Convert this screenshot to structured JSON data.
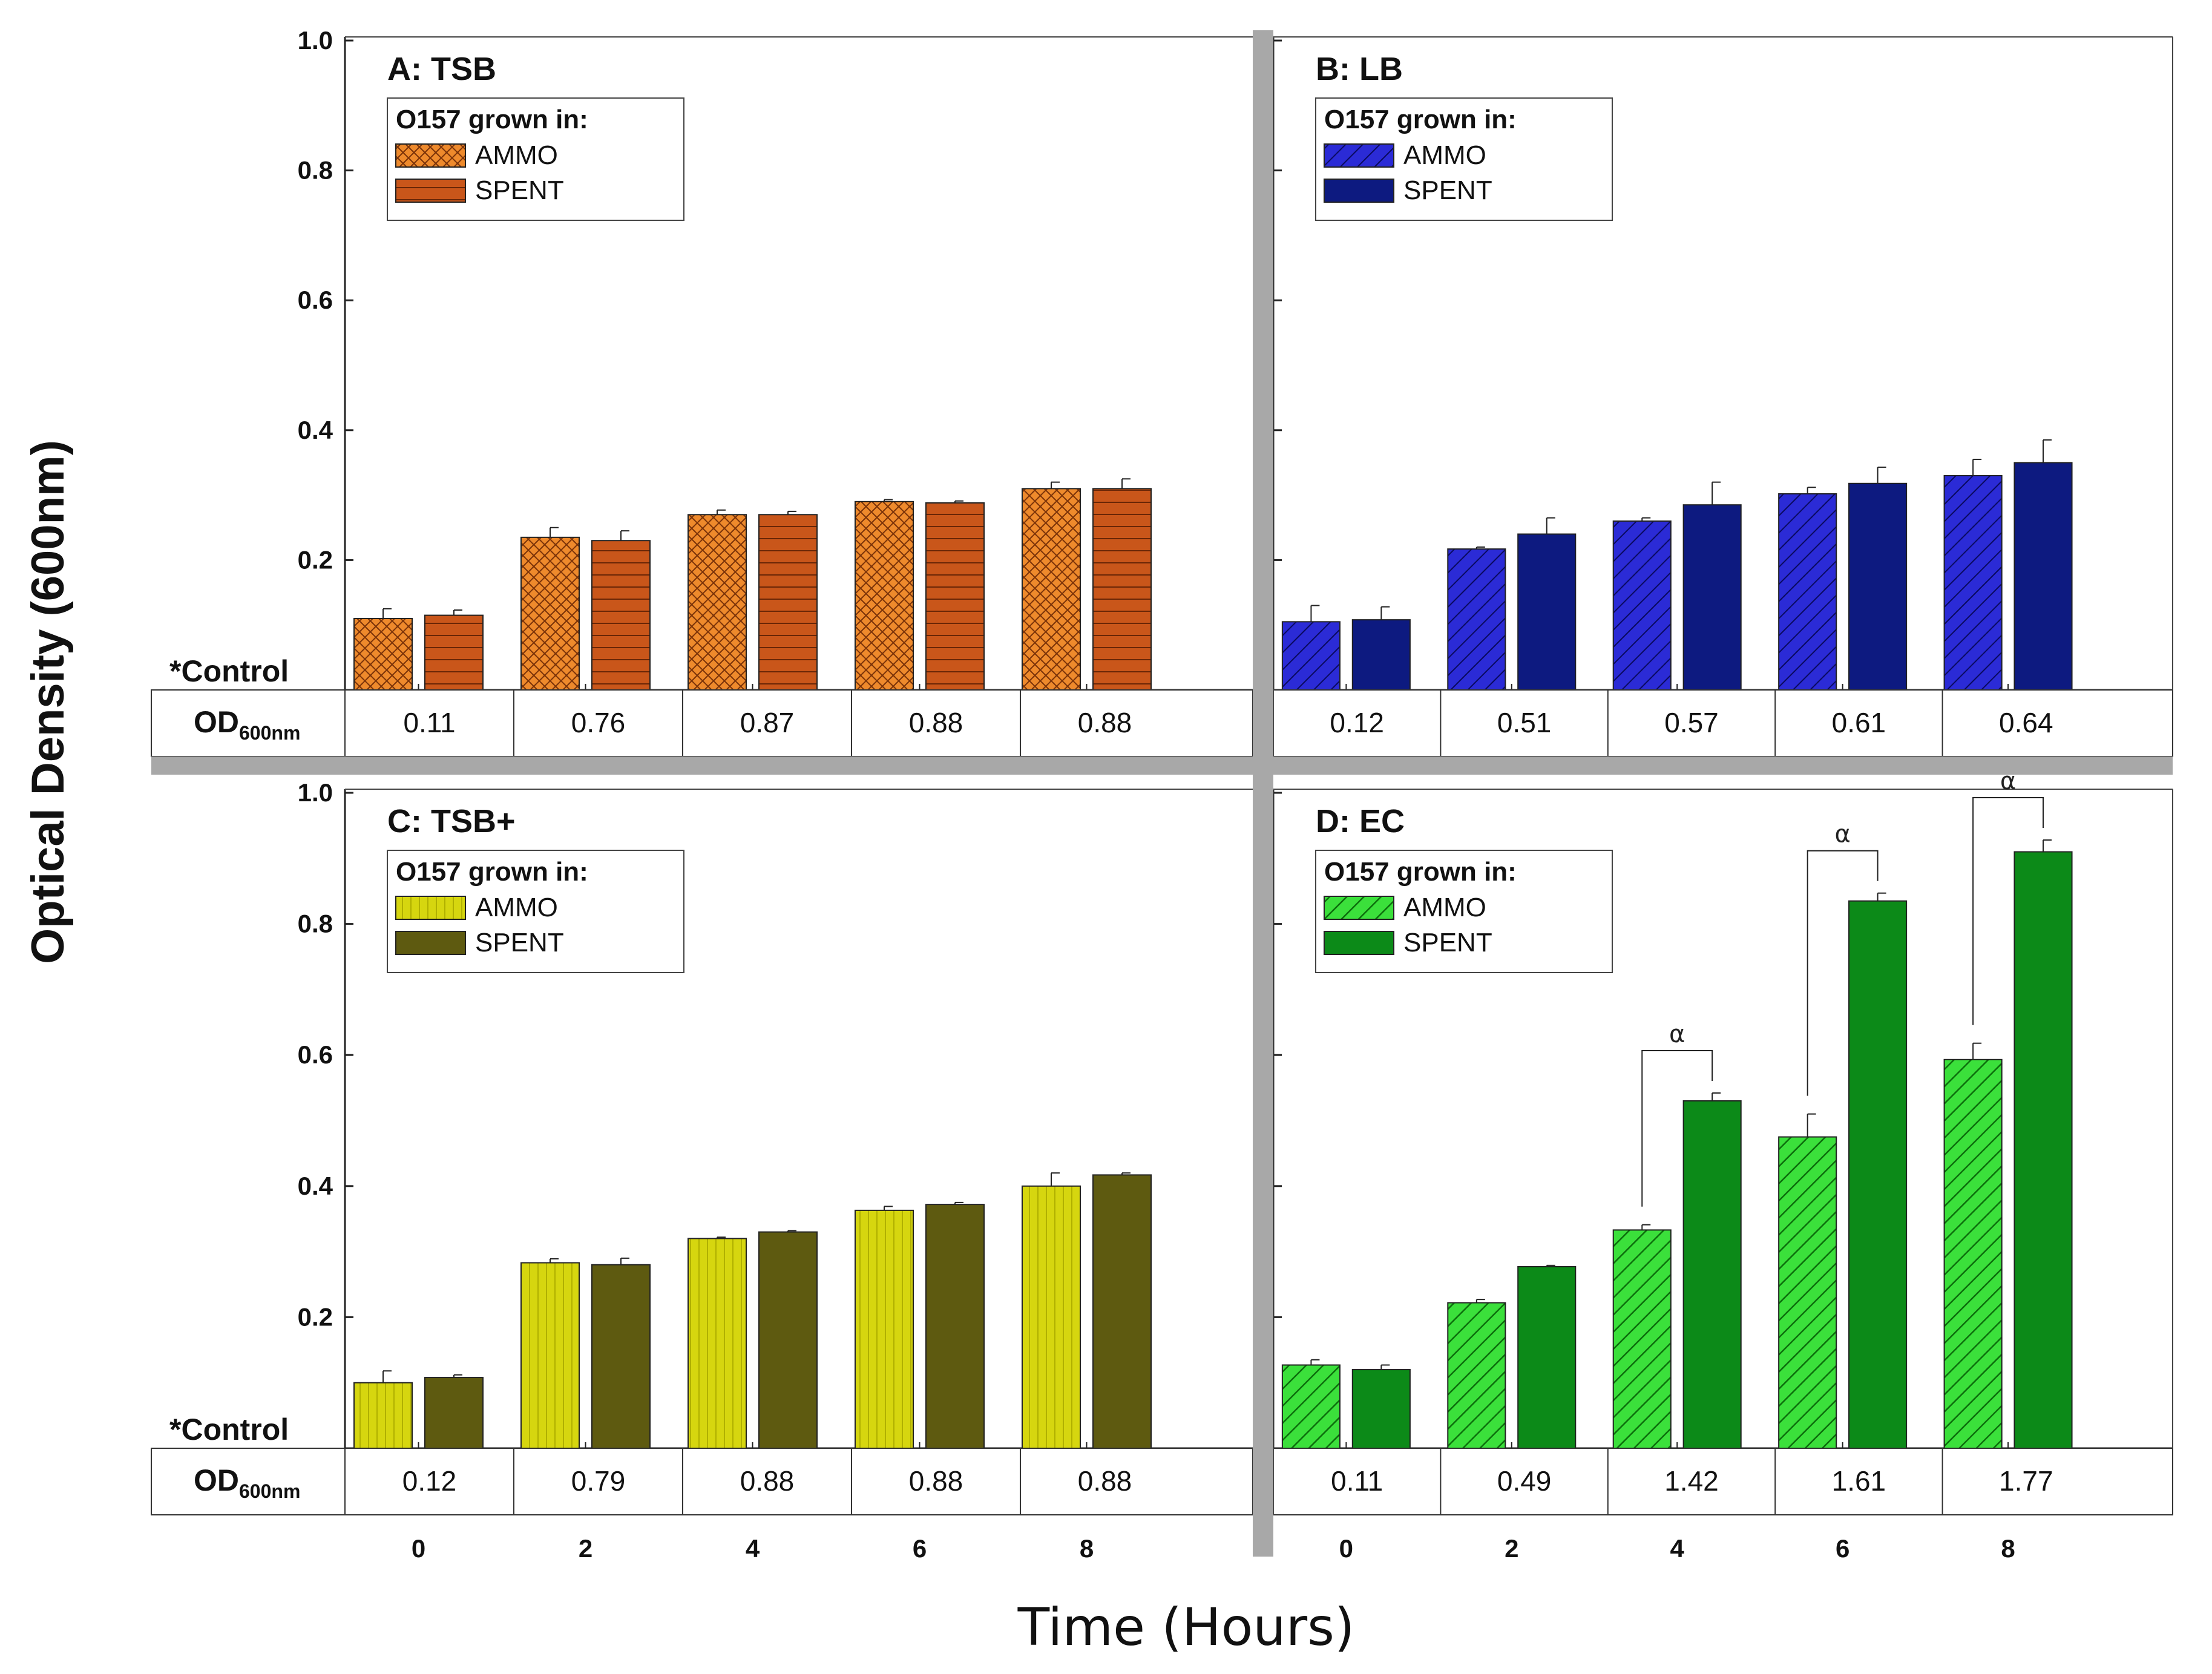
{
  "figure": {
    "ylabel": "Optical Density (600nm)",
    "xlabel": "Time (Hours)",
    "control_label": "*Control",
    "od_row_label": "OD",
    "od_row_sub": "600nm",
    "legend_title": "O157 grown in:",
    "significance_symbol": "α"
  },
  "colors": {
    "tsb_ammo": "#ee8a2c",
    "tsb_spent": "#c9561a",
    "lb_ammo": "#2b2bd6",
    "lb_spent": "#0d1a80",
    "tsbplus_ammo": "#d6d60f",
    "tsbplus_spent": "#5e5a10",
    "ec_ammo": "#3be03b",
    "ec_spent": "#0c8a18"
  },
  "chart_data": [
    {
      "type": "bar",
      "panel": "A",
      "title": "A:  TSB",
      "categories": [
        "0",
        "2",
        "4",
        "6",
        "8"
      ],
      "ylim": [
        0,
        1.0
      ],
      "yticks": [
        "0.2",
        "0.4",
        "0.6",
        "0.8",
        "1.0"
      ],
      "series": [
        {
          "name": "AMMO",
          "values": [
            0.11,
            0.235,
            0.27,
            0.29,
            0.31
          ],
          "errors": [
            0.015,
            0.015,
            0.007,
            0.003,
            0.01
          ]
        },
        {
          "name": "SPENT",
          "values": [
            0.115,
            0.23,
            0.27,
            0.288,
            0.31
          ],
          "errors": [
            0.008,
            0.015,
            0.005,
            0.003,
            0.015
          ]
        }
      ],
      "control_od": [
        "0.11",
        "0.76",
        "0.87",
        "0.88",
        "0.88"
      ]
    },
    {
      "type": "bar",
      "panel": "B",
      "title": "B:  LB",
      "categories": [
        "0",
        "2",
        "4",
        "6",
        "8"
      ],
      "ylim": [
        0,
        1.0
      ],
      "series": [
        {
          "name": "AMMO",
          "values": [
            0.105,
            0.217,
            0.26,
            0.302,
            0.33
          ],
          "errors": [
            0.025,
            0.003,
            0.005,
            0.01,
            0.025
          ]
        },
        {
          "name": "SPENT",
          "values": [
            0.108,
            0.24,
            0.285,
            0.318,
            0.35
          ],
          "errors": [
            0.02,
            0.025,
            0.035,
            0.025,
            0.035
          ]
        }
      ],
      "control_od": [
        "0.12",
        "0.51",
        "0.57",
        "0.61",
        "0.64"
      ]
    },
    {
      "type": "bar",
      "panel": "C",
      "title": "C:  TSB+",
      "categories": [
        "0",
        "2",
        "4",
        "6",
        "8"
      ],
      "ylim": [
        0,
        1.0
      ],
      "yticks": [
        "0.2",
        "0.4",
        "0.6",
        "0.8",
        "1.0"
      ],
      "series": [
        {
          "name": "AMMO",
          "values": [
            0.1,
            0.283,
            0.32,
            0.363,
            0.4
          ],
          "errors": [
            0.018,
            0.006,
            0.002,
            0.006,
            0.02
          ]
        },
        {
          "name": "SPENT",
          "values": [
            0.108,
            0.28,
            0.33,
            0.372,
            0.417
          ],
          "errors": [
            0.004,
            0.01,
            0.002,
            0.003,
            0.003
          ]
        }
      ],
      "control_od": [
        "0.12",
        "0.79",
        "0.88",
        "0.88",
        "0.88"
      ],
      "xticks": [
        "0",
        "2",
        "4",
        "6",
        "8"
      ]
    },
    {
      "type": "bar",
      "panel": "D",
      "title": "D:  EC",
      "categories": [
        "0",
        "2",
        "4",
        "6",
        "8"
      ],
      "ylim": [
        0,
        1.0
      ],
      "series": [
        {
          "name": "AMMO",
          "values": [
            0.127,
            0.222,
            0.333,
            0.475,
            0.593
          ],
          "errors": [
            0.008,
            0.005,
            0.008,
            0.035,
            0.025
          ]
        },
        {
          "name": "SPENT",
          "values": [
            0.12,
            0.277,
            0.53,
            0.835,
            0.91
          ],
          "errors": [
            0.007,
            0.002,
            0.012,
            0.012,
            0.018
          ]
        }
      ],
      "significance": [
        "4",
        "6",
        "8"
      ],
      "control_od": [
        "0.11",
        "0.49",
        "1.42",
        "1.61",
        "1.77"
      ],
      "xticks": [
        "0",
        "2",
        "4",
        "6",
        "8"
      ]
    }
  ]
}
